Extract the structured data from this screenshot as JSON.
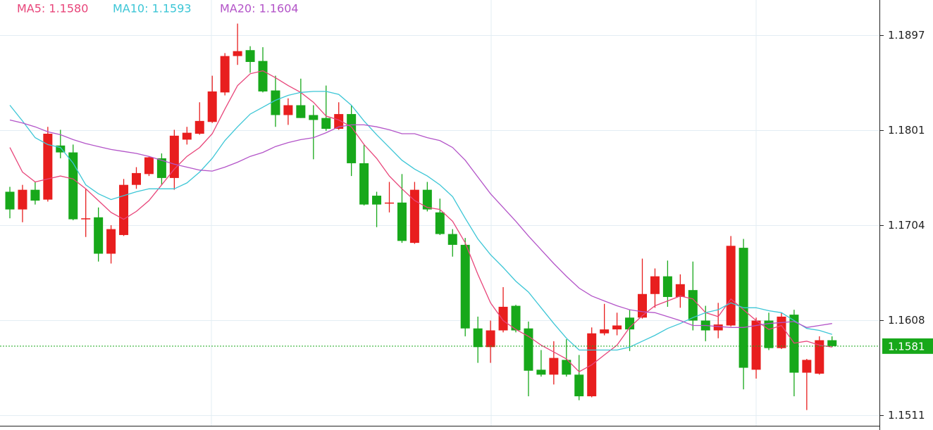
{
  "chart_data": {
    "type": "candlestick",
    "up_color": "#e81e1e",
    "down_color": "#17a81a",
    "candles": {
      "open": [
        1.1738,
        1.172,
        1.174,
        1.173,
        1.1785,
        1.1778,
        1.171,
        1.1712,
        1.1675,
        1.1694,
        1.1745,
        1.1756,
        1.1772,
        1.1752,
        1.1791,
        1.1797,
        1.1809,
        1.1839,
        1.1876,
        1.1882,
        1.1871,
        1.1841,
        1.1816,
        1.1826,
        1.1816,
        1.1813,
        1.1802,
        1.1817,
        1.1767,
        1.1734,
        1.1726,
        1.1727,
        1.1686,
        1.174,
        1.1717,
        1.1695,
        1.1684,
        1.1599,
        1.158,
        1.1597,
        1.1622,
        1.1599,
        1.1557,
        1.1552,
        1.1567,
        1.1552,
        1.153,
        1.1594,
        1.1598,
        1.161,
        1.161,
        1.1634,
        1.1652,
        1.1631,
        1.1638,
        1.1607,
        1.1597,
        1.1602,
        1.1681,
        1.1557,
        1.1607,
        1.1579,
        1.1613,
        1.1554,
        1.1553,
        1.1587
      ],
      "high": [
        1.1743,
        1.1745,
        1.1748,
        1.1804,
        1.1801,
        1.1786,
        1.1741,
        1.1722,
        1.1704,
        1.1751,
        1.1763,
        1.1774,
        1.1777,
        1.1801,
        1.1804,
        1.1829,
        1.1856,
        1.1879,
        1.1909,
        1.1886,
        1.1885,
        1.1856,
        1.1833,
        1.1853,
        1.1826,
        1.1846,
        1.1829,
        1.1826,
        1.1786,
        1.1738,
        1.1748,
        1.1756,
        1.1748,
        1.1748,
        1.1731,
        1.17,
        1.1691,
        1.1611,
        1.1607,
        1.1641,
        1.1623,
        1.1606,
        1.1577,
        1.1586,
        1.1588,
        1.1572,
        1.16,
        1.1624,
        1.1615,
        1.1618,
        1.167,
        1.166,
        1.1668,
        1.1654,
        1.1667,
        1.1622,
        1.1625,
        1.1693,
        1.169,
        1.161,
        1.1615,
        1.1615,
        1.1618,
        1.1568,
        1.1591,
        1.1591
      ],
      "low": [
        1.1711,
        1.1707,
        1.1725,
        1.1728,
        1.1772,
        1.1709,
        1.1692,
        1.1667,
        1.1665,
        1.1693,
        1.1741,
        1.1754,
        1.1745,
        1.174,
        1.1786,
        1.1796,
        1.1808,
        1.1836,
        1.1867,
        1.1859,
        1.1839,
        1.1804,
        1.1806,
        1.1813,
        1.1771,
        1.18,
        1.1801,
        1.1754,
        1.1724,
        1.1702,
        1.1717,
        1.1686,
        1.1685,
        1.1718,
        1.1694,
        1.1672,
        1.1591,
        1.1564,
        1.1564,
        1.1595,
        1.1595,
        1.153,
        1.155,
        1.1542,
        1.155,
        1.1526,
        1.1529,
        1.1592,
        1.1592,
        1.1576,
        1.1609,
        1.162,
        1.1621,
        1.162,
        1.1597,
        1.1586,
        1.1589,
        1.1601,
        1.1537,
        1.1548,
        1.1577,
        1.1578,
        1.153,
        1.1516,
        1.1552,
        1.158
      ],
      "close": [
        1.172,
        1.174,
        1.1729,
        1.1797,
        1.1778,
        1.171,
        1.1711,
        1.1675,
        1.17,
        1.1745,
        1.1757,
        1.1773,
        1.1752,
        1.1795,
        1.1798,
        1.181,
        1.184,
        1.1876,
        1.1881,
        1.187,
        1.184,
        1.1816,
        1.1826,
        1.1813,
        1.1811,
        1.1802,
        1.1817,
        1.1767,
        1.1725,
        1.1725,
        1.1727,
        1.1688,
        1.174,
        1.172,
        1.1695,
        1.1684,
        1.1599,
        1.158,
        1.1597,
        1.1621,
        1.1597,
        1.1556,
        1.1552,
        1.1569,
        1.1552,
        1.153,
        1.1594,
        1.1598,
        1.1602,
        1.1598,
        1.1634,
        1.1652,
        1.1631,
        1.1644,
        1.1607,
        1.1597,
        1.1603,
        1.1683,
        1.1559,
        1.1607,
        1.1579,
        1.1611,
        1.1554,
        1.1567,
        1.1587,
        1.1581
      ]
    },
    "series": [
      {
        "name": "MA5: 1.1580",
        "color": "#e8457a",
        "values": [
          1.1783,
          1.1758,
          1.1748,
          1.1751,
          1.1754,
          1.1751,
          1.1741,
          1.1729,
          1.1717,
          1.171,
          1.1718,
          1.1729,
          1.1745,
          1.1761,
          1.1774,
          1.1783,
          1.1797,
          1.1822,
          1.1846,
          1.1858,
          1.1861,
          1.1854,
          1.1846,
          1.1839,
          1.1829,
          1.1815,
          1.1811,
          1.1804,
          1.1786,
          1.1772,
          1.1754,
          1.1741,
          1.1729,
          1.1722,
          1.172,
          1.1708,
          1.1686,
          1.1654,
          1.1625,
          1.1607,
          1.1598,
          1.1591,
          1.1582,
          1.1575,
          1.1568,
          1.1555,
          1.1562,
          1.1572,
          1.1582,
          1.16,
          1.1612,
          1.1622,
          1.1627,
          1.1632,
          1.1629,
          1.1615,
          1.1611,
          1.1629,
          1.1618,
          1.1607,
          1.1598,
          1.1602,
          1.1584,
          1.1586,
          1.1582,
          1.158
        ]
      },
      {
        "name": "MA10: 1.1593",
        "color": "#3cc6d6",
        "values": [
          1.1826,
          1.181,
          1.1793,
          1.1786,
          1.1783,
          1.1767,
          1.1745,
          1.1736,
          1.173,
          1.1734,
          1.1738,
          1.1741,
          1.1741,
          1.1741,
          1.1747,
          1.1758,
          1.1772,
          1.179,
          1.1804,
          1.1817,
          1.1824,
          1.1831,
          1.1836,
          1.1839,
          1.184,
          1.184,
          1.1837,
          1.1826,
          1.181,
          1.1796,
          1.1783,
          1.177,
          1.1761,
          1.1754,
          1.1745,
          1.1733,
          1.1711,
          1.169,
          1.1674,
          1.1661,
          1.1647,
          1.1636,
          1.162,
          1.1604,
          1.1589,
          1.1577,
          1.1577,
          1.1577,
          1.1577,
          1.158,
          1.1586,
          1.1592,
          1.1599,
          1.1604,
          1.161,
          1.1615,
          1.1618,
          1.1625,
          1.162,
          1.162,
          1.1617,
          1.1615,
          1.1607,
          1.1599,
          1.1597,
          1.1593
        ]
      },
      {
        "name": "MA20: 1.1604",
        "color": "#b354c8",
        "values": [
          1.1811,
          1.1808,
          1.1804,
          1.1799,
          1.1796,
          1.1791,
          1.1787,
          1.1784,
          1.1781,
          1.1779,
          1.1777,
          1.1774,
          1.177,
          1.1766,
          1.1763,
          1.176,
          1.1759,
          1.1763,
          1.1768,
          1.1774,
          1.1778,
          1.1784,
          1.1788,
          1.1791,
          1.1793,
          1.1798,
          1.1804,
          1.1806,
          1.1806,
          1.1804,
          1.1801,
          1.1797,
          1.1797,
          1.1793,
          1.179,
          1.1783,
          1.177,
          1.1753,
          1.1736,
          1.1722,
          1.1708,
          1.1693,
          1.1679,
          1.1665,
          1.1652,
          1.164,
          1.1632,
          1.1627,
          1.1622,
          1.1618,
          1.1616,
          1.1615,
          1.1611,
          1.1607,
          1.1602,
          1.1602,
          1.1601,
          1.16,
          1.16,
          1.1602,
          1.1604,
          1.1605,
          1.1606,
          1.16,
          1.1602,
          1.1604
        ]
      }
    ],
    "last_price": 1.1581,
    "last_price_color": "#17a81a",
    "ylim": [
      1.15,
      1.1933
    ],
    "yticks": [
      1.1511,
      {
        "value": 1.16075,
        "label": "1.1608"
      },
      1.1704,
      {
        "value": 1.18005,
        "label": "1.1801"
      },
      1.1897
    ],
    "grid": true
  }
}
